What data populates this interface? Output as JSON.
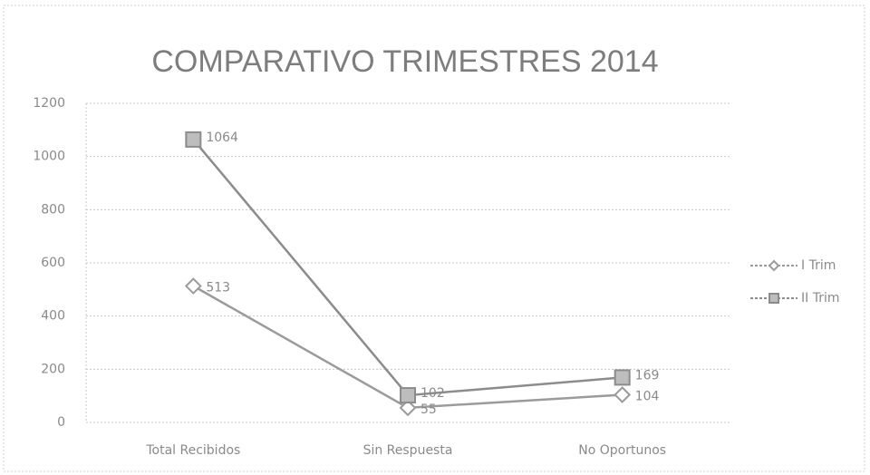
{
  "chart_data": {
    "type": "line",
    "title": "COMPARATIVO TRIMESTRES 2014",
    "categories": [
      "Total Recibidos",
      "Sin Respuesta",
      "No Oportunos"
    ],
    "series": [
      {
        "name": "I Trim",
        "color": "#9b9b9b",
        "marker": "diamond",
        "values": [
          513,
          55,
          104
        ]
      },
      {
        "name": "II Trim",
        "color": "#8c8c8c",
        "marker": "square",
        "values": [
          1064,
          102,
          169
        ]
      }
    ],
    "ylim": [
      0,
      1200
    ],
    "yticks": [
      0,
      200,
      400,
      600,
      800,
      1000,
      1200
    ],
    "grid": true,
    "legend": "right"
  }
}
